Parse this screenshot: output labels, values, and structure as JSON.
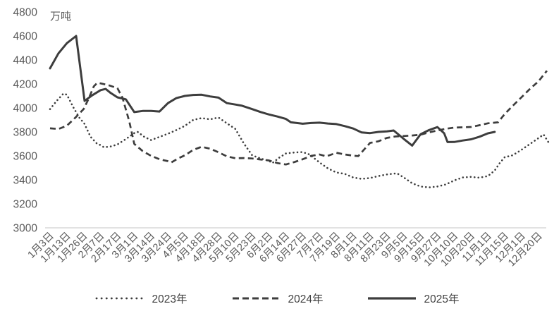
{
  "chart_data": {
    "type": "line",
    "title": "",
    "unit": "万吨",
    "xlabel": "",
    "ylabel": "万吨",
    "ylim": [
      3000,
      4800
    ],
    "ytick_step": 200,
    "yticks": [
      4800,
      4600,
      4400,
      4200,
      4000,
      3800,
      3600,
      3400,
      3200,
      3000
    ],
    "grid": false,
    "legend_position": "bottom",
    "x_unit": "category_index",
    "colors": {
      "line": "#3d3d3d",
      "axis_line": "#d9d9d9",
      "tick_text": "#595959",
      "legend_text": "#404040",
      "background": "#ffffff"
    },
    "categories": [
      "1月3日",
      "1月13日",
      "1月26日",
      "2月7日",
      "2月17日",
      "3月1日",
      "3月14日",
      "3月24日",
      "4月5日",
      "4月18日",
      "4月28日",
      "5月10日",
      "5月23日",
      "6月2日",
      "6月14日",
      "6月27日",
      "7月7日",
      "7月19日",
      "8月1日",
      "8月11日",
      "8月23日",
      "9月5日",
      "9月15日",
      "9月27日",
      "10月10日",
      "10月20日",
      "11月1日",
      "11月15日",
      "12月1日",
      "12月20日"
    ],
    "series": [
      {
        "name": "2023年",
        "style": "dotted",
        "color": "#3d3d3d",
        "points": [
          [
            0,
            3990
          ],
          [
            0.4,
            4060
          ],
          [
            0.8,
            4120
          ],
          [
            1,
            4110
          ],
          [
            1.4,
            4000
          ],
          [
            1.8,
            3905
          ],
          [
            2,
            3880
          ],
          [
            2.4,
            3760
          ],
          [
            2.8,
            3700
          ],
          [
            3,
            3690
          ],
          [
            3.2,
            3672
          ],
          [
            3.6,
            3678
          ],
          [
            4,
            3695
          ],
          [
            4.5,
            3740
          ],
          [
            5,
            3790
          ],
          [
            5.2,
            3800
          ],
          [
            5.6,
            3758
          ],
          [
            6,
            3732
          ],
          [
            6.5,
            3758
          ],
          [
            7,
            3785
          ],
          [
            7.5,
            3815
          ],
          [
            8,
            3850
          ],
          [
            8.5,
            3900
          ],
          [
            9,
            3915
          ],
          [
            9.5,
            3905
          ],
          [
            10,
            3920
          ],
          [
            10.5,
            3872
          ],
          [
            11,
            3825
          ],
          [
            11.5,
            3705
          ],
          [
            12,
            3605
          ],
          [
            12.5,
            3578
          ],
          [
            13,
            3558
          ],
          [
            13.2,
            3540
          ],
          [
            13.6,
            3585
          ],
          [
            14,
            3620
          ],
          [
            14.5,
            3628
          ],
          [
            15,
            3632
          ],
          [
            15.4,
            3612
          ],
          [
            16,
            3545
          ],
          [
            16.5,
            3495
          ],
          [
            17,
            3462
          ],
          [
            17.5,
            3450
          ],
          [
            18,
            3420
          ],
          [
            18.5,
            3408
          ],
          [
            19,
            3415
          ],
          [
            19.5,
            3432
          ],
          [
            20,
            3445
          ],
          [
            20.6,
            3455
          ],
          [
            21,
            3420
          ],
          [
            21.5,
            3372
          ],
          [
            22,
            3345
          ],
          [
            22.5,
            3337
          ],
          [
            23,
            3345
          ],
          [
            23.5,
            3362
          ],
          [
            24,
            3395
          ],
          [
            24.5,
            3420
          ],
          [
            25,
            3425
          ],
          [
            25.5,
            3418
          ],
          [
            26,
            3432
          ],
          [
            26.4,
            3478
          ],
          [
            26.7,
            3540
          ],
          [
            27,
            3590
          ],
          [
            27.4,
            3602
          ],
          [
            27.7,
            3625
          ],
          [
            28,
            3652
          ],
          [
            28.5,
            3700
          ],
          [
            29,
            3748
          ],
          [
            29.3,
            3778
          ],
          [
            29.6,
            3712
          ]
        ]
      },
      {
        "name": "2024年",
        "style": "dashed",
        "color": "#3d3d3d",
        "points": [
          [
            0,
            3830
          ],
          [
            0.5,
            3824
          ],
          [
            1,
            3852
          ],
          [
            1.5,
            3918
          ],
          [
            2,
            3992
          ],
          [
            2.3,
            4080
          ],
          [
            2.6,
            4180
          ],
          [
            2.8,
            4208
          ],
          [
            3,
            4205
          ],
          [
            3.5,
            4188
          ],
          [
            4,
            4165
          ],
          [
            4.3,
            4085
          ],
          [
            4.7,
            3890
          ],
          [
            5,
            3700
          ],
          [
            5.5,
            3640
          ],
          [
            6,
            3600
          ],
          [
            6.5,
            3572
          ],
          [
            7,
            3556
          ],
          [
            7.2,
            3545
          ],
          [
            7.6,
            3578
          ],
          [
            8,
            3605
          ],
          [
            8.5,
            3650
          ],
          [
            9,
            3676
          ],
          [
            9.5,
            3660
          ],
          [
            10,
            3630
          ],
          [
            10.5,
            3596
          ],
          [
            11,
            3580
          ],
          [
            11.5,
            3582
          ],
          [
            12,
            3578
          ],
          [
            12.5,
            3570
          ],
          [
            13,
            3562
          ],
          [
            13.5,
            3540
          ],
          [
            14,
            3528
          ],
          [
            14.5,
            3548
          ],
          [
            15,
            3572
          ],
          [
            15.5,
            3600
          ],
          [
            16,
            3612
          ],
          [
            16.4,
            3596
          ],
          [
            17,
            3626
          ],
          [
            17.5,
            3612
          ],
          [
            18,
            3602
          ],
          [
            18.3,
            3598
          ],
          [
            18.7,
            3662
          ],
          [
            19,
            3708
          ],
          [
            19.5,
            3722
          ],
          [
            20,
            3750
          ],
          [
            20.5,
            3762
          ],
          [
            21,
            3766
          ],
          [
            21.5,
            3770
          ],
          [
            22,
            3777
          ],
          [
            22.5,
            3796
          ],
          [
            23,
            3812
          ],
          [
            23.5,
            3826
          ],
          [
            24,
            3836
          ],
          [
            24.5,
            3838
          ],
          [
            25,
            3841
          ],
          [
            25.5,
            3856
          ],
          [
            26,
            3872
          ],
          [
            26.3,
            3876
          ],
          [
            26.6,
            3880
          ],
          [
            27,
            3950
          ],
          [
            27.5,
            4022
          ],
          [
            28,
            4090
          ],
          [
            28.5,
            4160
          ],
          [
            29,
            4222
          ],
          [
            29.5,
            4310
          ]
        ]
      },
      {
        "name": "2025年",
        "style": "solid",
        "color": "#3d3d3d",
        "points": [
          [
            0,
            4330
          ],
          [
            0.5,
            4455
          ],
          [
            1,
            4540
          ],
          [
            1.55,
            4600
          ],
          [
            2.05,
            4058
          ],
          [
            2.5,
            4105
          ],
          [
            3,
            4148
          ],
          [
            3.3,
            4158
          ],
          [
            3.6,
            4125
          ],
          [
            4,
            4088
          ],
          [
            4.5,
            4072
          ],
          [
            5,
            3965
          ],
          [
            5.5,
            3975
          ],
          [
            6,
            3975
          ],
          [
            6.5,
            3970
          ],
          [
            7,
            4040
          ],
          [
            7.5,
            4082
          ],
          [
            8,
            4100
          ],
          [
            8.5,
            4108
          ],
          [
            9,
            4110
          ],
          [
            9.5,
            4096
          ],
          [
            10,
            4086
          ],
          [
            10.5,
            4040
          ],
          [
            11,
            4028
          ],
          [
            11.4,
            4018
          ],
          [
            12,
            3990
          ],
          [
            12.5,
            3966
          ],
          [
            13,
            3945
          ],
          [
            13.5,
            3928
          ],
          [
            14,
            3908
          ],
          [
            14.3,
            3880
          ],
          [
            15,
            3868
          ],
          [
            15.5,
            3874
          ],
          [
            16,
            3877
          ],
          [
            16.5,
            3870
          ],
          [
            17,
            3865
          ],
          [
            17.5,
            3848
          ],
          [
            18,
            3828
          ],
          [
            18.5,
            3795
          ],
          [
            19,
            3790
          ],
          [
            19.5,
            3800
          ],
          [
            20,
            3805
          ],
          [
            20.4,
            3812
          ],
          [
            21,
            3742
          ],
          [
            21.5,
            3686
          ],
          [
            22,
            3780
          ],
          [
            22.5,
            3815
          ],
          [
            23,
            3840
          ],
          [
            23.4,
            3788
          ],
          [
            23.6,
            3715
          ],
          [
            24,
            3716
          ],
          [
            24.5,
            3728
          ],
          [
            25,
            3738
          ],
          [
            25.5,
            3760
          ],
          [
            26,
            3788
          ],
          [
            26.4,
            3800
          ]
        ]
      }
    ]
  }
}
